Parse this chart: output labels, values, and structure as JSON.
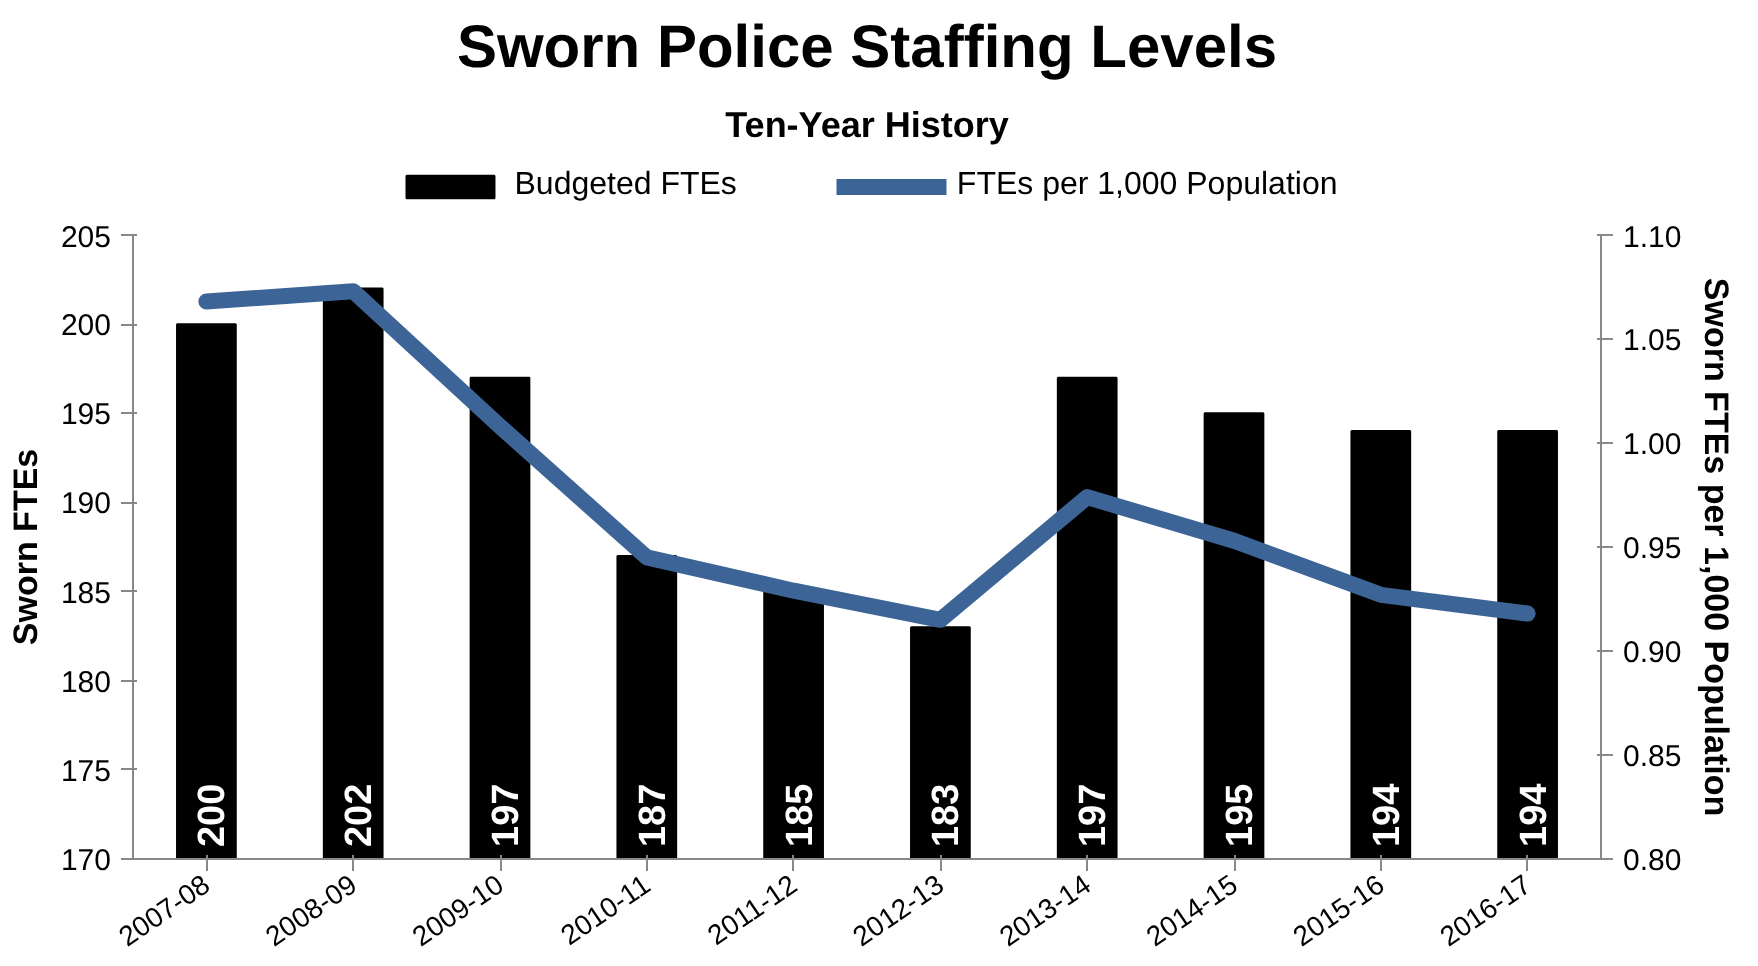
{
  "chart_data": {
    "type": "bar",
    "title": "Sworn Police Staffing Levels",
    "subtitle": "Ten-Year History",
    "ylabel": "Sworn FTEs",
    "y2label": "Sworn FTEs per 1,000 Population",
    "categories": [
      "2007-08",
      "2008-09",
      "2009-10",
      "2010-11",
      "2011-12",
      "2012-13",
      "2013-14",
      "2014-15",
      "2015-16",
      "2016-17"
    ],
    "series": [
      {
        "name": "Budgeted FTEs",
        "color": "#000000",
        "values": [
          200,
          202,
          197,
          187,
          185,
          183,
          197,
          195,
          194,
          194
        ],
        "value_labels": [
          "200",
          "202",
          "197",
          "187",
          "185",
          "183",
          "197",
          "195",
          "194",
          "194"
        ]
      },
      {
        "name": "FTEs per 1,000 Population",
        "type": "line",
        "axis": "y2",
        "color": "#3c6496",
        "values": [
          1.068,
          1.073,
          1.008,
          0.945,
          0.929,
          0.915,
          0.974,
          0.953,
          0.927,
          0.918
        ]
      }
    ],
    "ylim": [
      170,
      205
    ],
    "yticks": [
      170,
      175,
      180,
      185,
      190,
      195,
      200,
      205
    ],
    "y2lim": [
      0.8,
      1.1
    ],
    "y2ticks": [
      {
        "value": 0.8,
        "label": "0.80"
      },
      {
        "value": 0.85,
        "label": "0.85"
      },
      {
        "value": 0.9,
        "label": "0.90"
      },
      {
        "value": 0.95,
        "label": "0.95"
      },
      {
        "value": 1.0,
        "label": "1.00"
      },
      {
        "value": 1.05,
        "label": "1.05"
      },
      {
        "value": 1.1,
        "label": "1.10"
      }
    ],
    "grid": false,
    "legend": "top",
    "marker": "none",
    "line_style": "solid"
  }
}
